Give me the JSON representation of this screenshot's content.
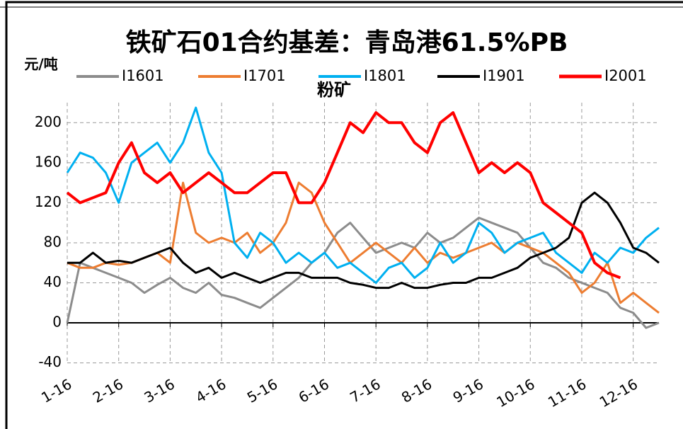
{
  "chart_data": {
    "type": "line",
    "title": "铁矿石01合约基差：青岛港61.5%PB",
    "subtitle": "粉矿",
    "y_label": "元/吨",
    "categories": [
      "1-16",
      null,
      null,
      null,
      "2-16",
      null,
      null,
      null,
      "3-16",
      null,
      null,
      null,
      "4-16",
      null,
      null,
      null,
      "5-16",
      null,
      null,
      null,
      "6-16",
      null,
      null,
      null,
      "7-16",
      null,
      null,
      null,
      "8-16",
      null,
      null,
      null,
      "9-16",
      null,
      null,
      null,
      "10-16",
      null,
      null,
      null,
      "11-16",
      null,
      null,
      null,
      "12-16",
      null,
      null
    ],
    "series": [
      {
        "name": "I1601",
        "color": "#8c8c8c",
        "values": [
          0,
          60,
          55,
          50,
          45,
          40,
          30,
          38,
          45,
          35,
          30,
          40,
          28,
          25,
          20,
          15,
          25,
          35,
          45,
          60,
          70,
          90,
          100,
          85,
          70,
          75,
          80,
          75,
          90,
          80,
          85,
          95,
          105,
          100,
          95,
          90,
          75,
          60,
          55,
          45,
          40,
          35,
          30,
          15,
          10,
          -5,
          0
        ]
      },
      {
        "name": "I1701",
        "color": "#ed7d31",
        "values": [
          60,
          55,
          55,
          60,
          58,
          60,
          65,
          70,
          60,
          140,
          90,
          80,
          85,
          80,
          90,
          70,
          80,
          100,
          140,
          130,
          100,
          80,
          60,
          70,
          80,
          70,
          60,
          75,
          60,
          70,
          65,
          70,
          75,
          80,
          70,
          80,
          75,
          70,
          60,
          50,
          30,
          40,
          60,
          20,
          30,
          20,
          10
        ]
      },
      {
        "name": "I1801",
        "color": "#00b0f0",
        "values": [
          150,
          170,
          165,
          150,
          120,
          160,
          170,
          180,
          160,
          180,
          215,
          170,
          150,
          80,
          65,
          90,
          80,
          60,
          70,
          60,
          70,
          55,
          60,
          50,
          40,
          55,
          60,
          45,
          55,
          80,
          60,
          70,
          100,
          90,
          70,
          80,
          85,
          90,
          70,
          60,
          50,
          70,
          60,
          75,
          70,
          85,
          95
        ]
      },
      {
        "name": "I1901",
        "color": "#000000",
        "values": [
          60,
          60,
          70,
          60,
          62,
          60,
          65,
          70,
          75,
          60,
          50,
          55,
          45,
          50,
          45,
          40,
          45,
          50,
          50,
          45,
          45,
          45,
          40,
          38,
          35,
          35,
          40,
          35,
          35,
          38,
          40,
          40,
          45,
          45,
          50,
          55,
          65,
          70,
          75,
          85,
          120,
          130,
          120,
          100,
          75,
          70,
          60
        ]
      },
      {
        "name": "I2001",
        "color": "#ff0000",
        "values": [
          130,
          120,
          125,
          130,
          160,
          180,
          150,
          140,
          150,
          130,
          140,
          150,
          140,
          130,
          130,
          140,
          150,
          150,
          120,
          120,
          140,
          170,
          200,
          190,
          210,
          200,
          200,
          180,
          170,
          200,
          210,
          180,
          150,
          160,
          150,
          160,
          150,
          120,
          110,
          100,
          90,
          60,
          50,
          45,
          null,
          null,
          null
        ]
      }
    ],
    "ylim": [
      -40,
      220
    ],
    "yticks": [
      -40,
      0,
      40,
      80,
      120,
      160,
      200
    ],
    "grid": true
  }
}
